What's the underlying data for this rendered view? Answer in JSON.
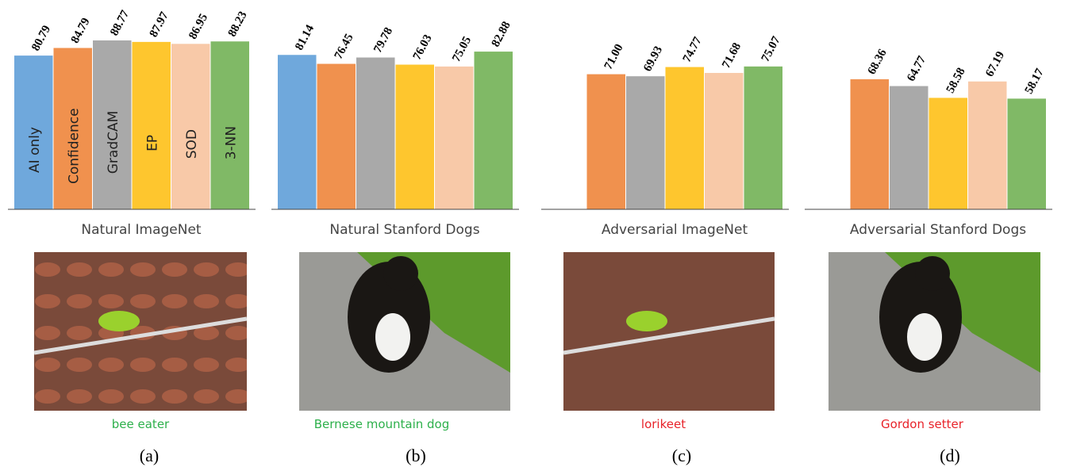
{
  "chart_data": [
    {
      "type": "bar",
      "title": "Natural ImageNet",
      "categories": [
        "AI only",
        "Confidence",
        "GradCAM",
        "EP",
        "SOD",
        "3-NN"
      ],
      "values": [
        80.79,
        84.79,
        88.77,
        87.97,
        86.95,
        88.23
      ],
      "value_labels": [
        "80.79",
        "84.79",
        "88.77",
        "87.97",
        "86.95",
        "88.23"
      ],
      "colors": [
        "#6fa8dc",
        "#f0914e",
        "#a9a9a9",
        "#fec62e",
        "#f8c9a8",
        "#80b966"
      ],
      "ylim": [
        0,
        100
      ]
    },
    {
      "type": "bar",
      "title": "Natural Stanford Dogs",
      "values": [
        81.14,
        76.45,
        79.78,
        76.03,
        75.05,
        82.88
      ],
      "value_labels": [
        "81.14",
        "76.45",
        "79.78",
        "76.03",
        "75.05",
        "82.88"
      ],
      "colors": [
        "#6fa8dc",
        "#f0914e",
        "#a9a9a9",
        "#fec62e",
        "#f8c9a8",
        "#80b966"
      ],
      "ylim": [
        0,
        100
      ]
    },
    {
      "type": "bar",
      "title": "Adversarial ImageNet",
      "values": [
        71.0,
        69.93,
        74.77,
        71.68,
        75.07
      ],
      "value_labels": [
        "71.00",
        "69.93",
        "74.77",
        "71.68",
        "75.07"
      ],
      "colors": [
        "#f0914e",
        "#a9a9a9",
        "#fec62e",
        "#f8c9a8",
        "#80b966"
      ],
      "ylim": [
        0,
        100
      ]
    },
    {
      "type": "bar",
      "title": "Adversarial Stanford Dogs",
      "values": [
        68.36,
        64.77,
        58.58,
        67.19,
        58.17
      ],
      "value_labels": [
        "68.36",
        "64.77",
        "58.58",
        "67.19",
        "58.17"
      ],
      "colors": [
        "#f0914e",
        "#a9a9a9",
        "#fec62e",
        "#f8c9a8",
        "#80b966"
      ],
      "ylim": [
        0,
        100
      ]
    }
  ],
  "panels": [
    {
      "caption": "bee eater",
      "caption_color": "#2db04b",
      "label": "(a)"
    },
    {
      "caption": "Bernese mountain dog",
      "caption_color": "#2db04b",
      "label": "(b)"
    },
    {
      "caption": "lorikeet",
      "caption_color": "#e8232a",
      "label": "(c)"
    },
    {
      "caption": "Gordon setter",
      "caption_color": "#e8232a",
      "label": "(d)"
    }
  ]
}
